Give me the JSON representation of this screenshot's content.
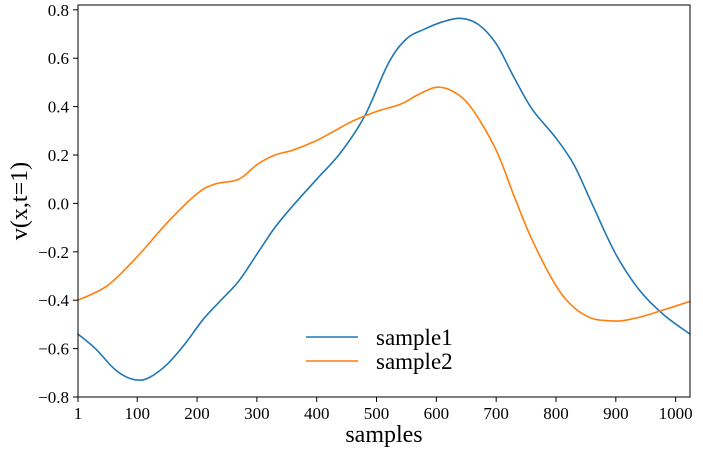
{
  "chart_data": {
    "type": "line",
    "title": "",
    "xlabel": "samples",
    "ylabel": "v(x,t=1)",
    "xlim": [
      1,
      1024
    ],
    "ylim": [
      -0.8,
      0.82
    ],
    "grid": false,
    "legend_position": "lower-center",
    "x_ticks": [
      1,
      100,
      200,
      300,
      400,
      500,
      600,
      700,
      800,
      900,
      1000
    ],
    "x_tick_labels": [
      "1",
      "100",
      "200",
      "300",
      "400",
      "500",
      "600",
      "700",
      "800",
      "900",
      "1000"
    ],
    "y_ticks": [
      -0.8,
      -0.6,
      -0.4,
      -0.2,
      0.0,
      0.2,
      0.4,
      0.6,
      0.8
    ],
    "y_tick_labels": [
      "−0.8",
      "−0.6",
      "−0.4",
      "−0.2",
      "0.0",
      "0.2",
      "0.4",
      "0.6",
      "0.8"
    ],
    "series": [
      {
        "name": "sample1",
        "color": "#1f77b4",
        "x": [
          1,
          30,
          60,
          80,
          100,
          120,
          150,
          180,
          210,
          240,
          270,
          300,
          330,
          360,
          400,
          440,
          480,
          520,
          550,
          580,
          610,
          640,
          670,
          700,
          730,
          760,
          800,
          830,
          860,
          900,
          940,
          980,
          1024
        ],
        "y": [
          -0.54,
          -0.6,
          -0.68,
          -0.715,
          -0.73,
          -0.72,
          -0.665,
          -0.58,
          -0.48,
          -0.4,
          -0.32,
          -0.21,
          -0.1,
          -0.01,
          0.1,
          0.21,
          0.36,
          0.58,
          0.68,
          0.72,
          0.75,
          0.765,
          0.74,
          0.66,
          0.52,
          0.39,
          0.27,
          0.16,
          0.0,
          -0.21,
          -0.36,
          -0.46,
          -0.54
        ]
      },
      {
        "name": "sample2",
        "color": "#ff7f0e",
        "x": [
          1,
          50,
          100,
          150,
          200,
          230,
          270,
          300,
          330,
          360,
          400,
          430,
          460,
          500,
          540,
          570,
          600,
          630,
          660,
          700,
          730,
          760,
          800,
          830,
          860,
          890,
          910,
          940,
          980,
          1024
        ],
        "y": [
          -0.4,
          -0.34,
          -0.22,
          -0.08,
          0.04,
          0.08,
          0.1,
          0.16,
          0.2,
          0.22,
          0.26,
          0.3,
          0.34,
          0.38,
          0.41,
          0.45,
          0.48,
          0.46,
          0.39,
          0.22,
          0.03,
          -0.15,
          -0.34,
          -0.43,
          -0.475,
          -0.485,
          -0.485,
          -0.47,
          -0.44,
          -0.405
        ]
      }
    ]
  }
}
